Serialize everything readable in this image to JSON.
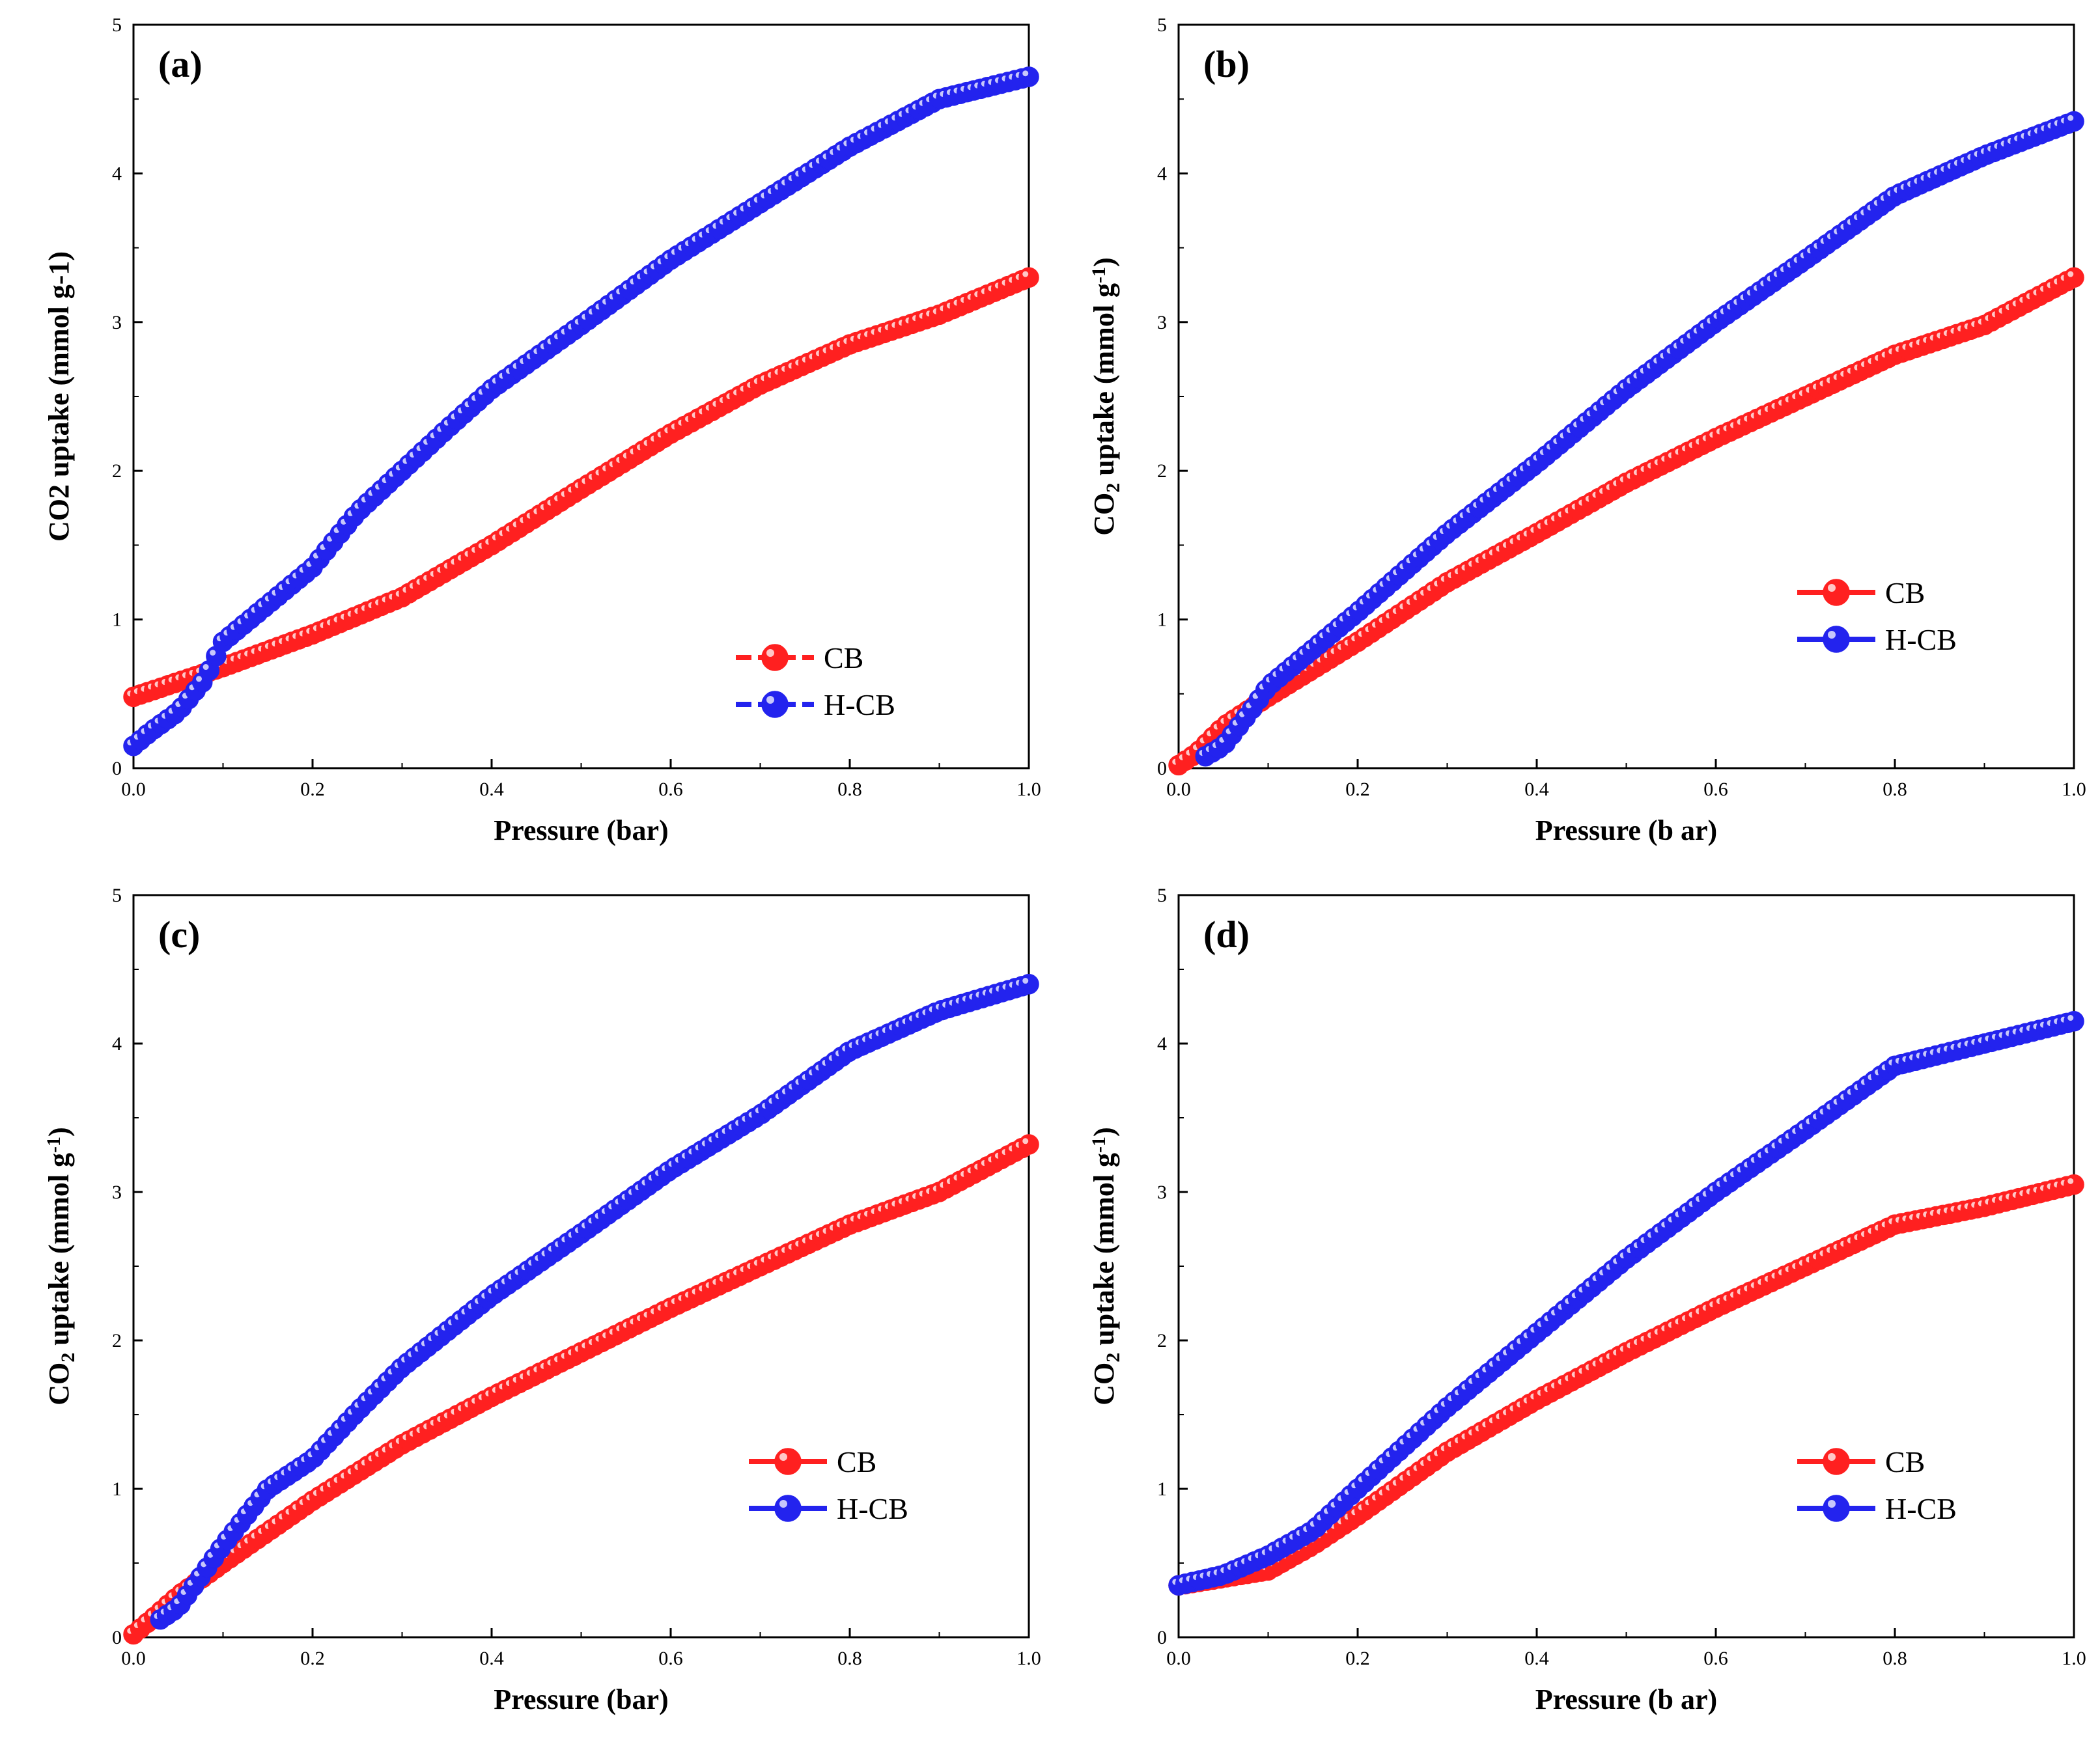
{
  "colors": {
    "CB": "#ff2020",
    "H-CB": "#2323ee",
    "axis": "#000000"
  },
  "chart_data": [
    {
      "type": "scatter",
      "panel_label": "(a)",
      "xlabel": "Pressure (bar)",
      "ylabel": "CO2 uptake (mmol g-1)",
      "ylabel_parts": [
        {
          "t": "CO2 uptake (mmol g-1)",
          "s": ""
        }
      ],
      "xlim": [
        0,
        1
      ],
      "ylim": [
        0,
        5
      ],
      "xticks": [
        "0.0",
        "0.2",
        "0.4",
        "0.6",
        "0.8",
        "1.0"
      ],
      "yticks": [
        "0",
        "1",
        "2",
        "3",
        "4",
        "5"
      ],
      "legend": [
        "CB",
        "H-CB"
      ],
      "legend_style": "dashed",
      "series": [
        {
          "name": "CB",
          "x": [
            0.0,
            0.1,
            0.2,
            0.3,
            0.4,
            0.5,
            0.6,
            0.7,
            0.8,
            0.9,
            1.0
          ],
          "y": [
            0.48,
            0.68,
            0.9,
            1.15,
            1.5,
            1.88,
            2.25,
            2.58,
            2.85,
            3.05,
            3.3
          ]
        },
        {
          "name": "H-CB",
          "x": [
            0.0,
            0.02,
            0.05,
            0.08,
            0.1,
            0.15,
            0.2,
            0.25,
            0.3,
            0.35,
            0.4,
            0.5,
            0.6,
            0.7,
            0.8,
            0.9,
            1.0
          ],
          "y": [
            0.15,
            0.25,
            0.38,
            0.6,
            0.85,
            1.1,
            1.35,
            1.72,
            2.0,
            2.28,
            2.55,
            2.98,
            3.42,
            3.8,
            4.18,
            4.5,
            4.65
          ]
        }
      ]
    },
    {
      "type": "scatter",
      "panel_label": "(b)",
      "xlabel": "Pressure (b ar)",
      "ylabel": "CO2 uptake (mmol g-1)",
      "ylabel_parts": [
        {
          "t": "CO",
          "s": ""
        },
        {
          "t": "2",
          "s": "sub"
        },
        {
          "t": " uptake (mmol g",
          "s": ""
        },
        {
          "t": "-1",
          "s": "sup"
        },
        {
          "t": ")",
          "s": ""
        }
      ],
      "xlim": [
        0,
        1
      ],
      "ylim": [
        0,
        5
      ],
      "xticks": [
        "0.0",
        "0.2",
        "0.4",
        "0.6",
        "0.8",
        "1.0"
      ],
      "yticks": [
        "0",
        "1",
        "2",
        "3",
        "4",
        "5"
      ],
      "legend": [
        "CB",
        "H-CB"
      ],
      "legend_style": "solid",
      "series": [
        {
          "name": "CB",
          "x": [
            0.0,
            0.02,
            0.05,
            0.1,
            0.2,
            0.3,
            0.4,
            0.5,
            0.6,
            0.7,
            0.8,
            0.9,
            1.0
          ],
          "y": [
            0.02,
            0.1,
            0.28,
            0.48,
            0.85,
            1.25,
            1.58,
            1.92,
            2.22,
            2.5,
            2.78,
            2.98,
            3.3
          ]
        },
        {
          "name": "H-CB",
          "x": [
            0.03,
            0.05,
            0.08,
            0.1,
            0.15,
            0.2,
            0.3,
            0.4,
            0.5,
            0.6,
            0.7,
            0.8,
            0.9,
            1.0
          ],
          "y": [
            0.08,
            0.15,
            0.38,
            0.55,
            0.8,
            1.05,
            1.58,
            2.05,
            2.55,
            3.0,
            3.42,
            3.85,
            4.12,
            4.35
          ]
        }
      ]
    },
    {
      "type": "scatter",
      "panel_label": "(c)",
      "xlabel": "Pressure (bar)",
      "ylabel": "CO2 uptake (mmol g-1)",
      "ylabel_parts": [
        {
          "t": "CO",
          "s": ""
        },
        {
          "t": "2",
          "s": "sub"
        },
        {
          "t": " uptake (mmol g",
          "s": ""
        },
        {
          "t": "-1",
          "s": "sup"
        },
        {
          "t": ")",
          "s": ""
        }
      ],
      "xlim": [
        0,
        1
      ],
      "ylim": [
        0,
        5
      ],
      "xticks": [
        "0.0",
        "0.2",
        "0.4",
        "0.6",
        "0.8",
        "1.0"
      ],
      "yticks": [
        "0",
        "1",
        "2",
        "3",
        "4",
        "5"
      ],
      "legend": [
        "CB",
        "H-CB"
      ],
      "legend_style": "solid",
      "series": [
        {
          "name": "CB",
          "x": [
            0.0,
            0.02,
            0.05,
            0.1,
            0.2,
            0.3,
            0.4,
            0.5,
            0.6,
            0.7,
            0.8,
            0.9,
            1.0
          ],
          "y": [
            0.02,
            0.12,
            0.28,
            0.5,
            0.92,
            1.3,
            1.62,
            1.92,
            2.22,
            2.5,
            2.78,
            3.0,
            3.32
          ]
        },
        {
          "name": "H-CB",
          "x": [
            0.03,
            0.05,
            0.08,
            0.1,
            0.15,
            0.2,
            0.25,
            0.3,
            0.4,
            0.5,
            0.6,
            0.7,
            0.8,
            0.9,
            1.0
          ],
          "y": [
            0.12,
            0.2,
            0.45,
            0.62,
            1.0,
            1.2,
            1.52,
            1.82,
            2.3,
            2.72,
            3.15,
            3.52,
            3.95,
            4.22,
            4.4
          ]
        }
      ]
    },
    {
      "type": "scatter",
      "panel_label": "(d)",
      "xlabel": "Pressure (b ar)",
      "ylabel": "CO2 uptake (mmol g-1)",
      "ylabel_parts": [
        {
          "t": "CO",
          "s": ""
        },
        {
          "t": "2",
          "s": "sub"
        },
        {
          "t": " uptake (mmol g",
          "s": ""
        },
        {
          "t": "-1",
          "s": "sup"
        },
        {
          "t": ")",
          "s": ""
        }
      ],
      "xlim": [
        0,
        1
      ],
      "ylim": [
        0,
        5
      ],
      "xticks": [
        "0.0",
        "0.2",
        "0.4",
        "0.6",
        "0.8",
        "1.0"
      ],
      "yticks": [
        "0",
        "1",
        "2",
        "3",
        "4",
        "5"
      ],
      "legend": [
        "CB",
        "H-CB"
      ],
      "legend_style": "solid",
      "series": [
        {
          "name": "CB",
          "x": [
            0.0,
            0.05,
            0.1,
            0.15,
            0.2,
            0.3,
            0.4,
            0.5,
            0.6,
            0.7,
            0.8,
            0.9,
            1.0
          ],
          "y": [
            0.35,
            0.4,
            0.45,
            0.62,
            0.82,
            1.25,
            1.6,
            1.92,
            2.22,
            2.5,
            2.78,
            2.9,
            3.05
          ]
        },
        {
          "name": "H-CB",
          "x": [
            0.0,
            0.05,
            0.1,
            0.15,
            0.2,
            0.3,
            0.4,
            0.5,
            0.6,
            0.7,
            0.8,
            0.9,
            1.0
          ],
          "y": [
            0.35,
            0.42,
            0.55,
            0.72,
            1.0,
            1.55,
            2.05,
            2.55,
            3.0,
            3.42,
            3.85,
            4.0,
            4.15
          ]
        }
      ]
    }
  ]
}
